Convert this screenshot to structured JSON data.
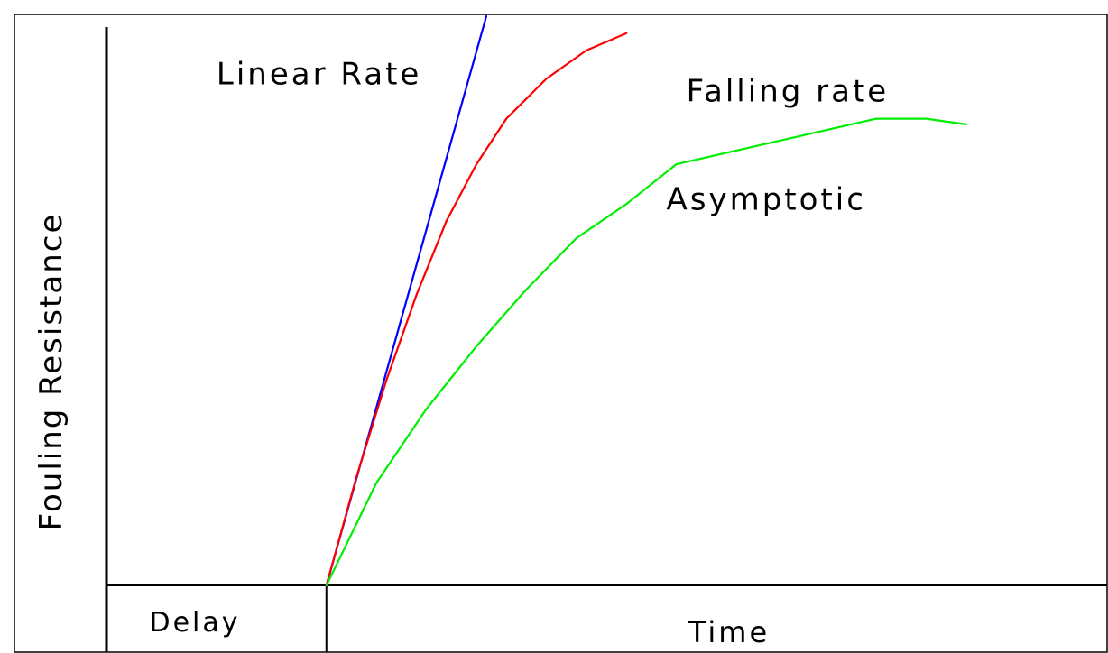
{
  "chart_data": {
    "type": "line",
    "title": "",
    "ylabel": "Fouling Resistance",
    "xlabel": "Time",
    "delay_label": "Delay",
    "xlim": [
      0,
      100
    ],
    "ylim": [
      0,
      100
    ],
    "delay_end": 22,
    "grid": false,
    "series": [
      {
        "name": "Linear Rate",
        "color": "#0000ff",
        "x": [
          22,
          38
        ],
        "y": [
          0,
          100
        ]
      },
      {
        "name": "Falling rate",
        "color": "#ff0000",
        "x": [
          22,
          25,
          28,
          31,
          34,
          37,
          40,
          44,
          48,
          52
        ],
        "y": [
          0,
          19,
          36,
          51,
          64,
          74,
          82,
          89,
          94,
          97
        ]
      },
      {
        "name": "Asymptotic",
        "color": "#00ee00",
        "x": [
          22,
          27,
          32,
          37,
          42,
          47,
          52,
          57,
          62,
          67,
          72,
          77,
          82,
          86
        ],
        "y": [
          0,
          18,
          31,
          42,
          52,
          61,
          67,
          74,
          76,
          78,
          80,
          82,
          82,
          81
        ]
      }
    ],
    "annotations": [
      {
        "text": "Linear Rate",
        "x": 11,
        "y": 88
      },
      {
        "text": "Falling rate",
        "x": 58,
        "y": 85
      },
      {
        "text": "Asymptotic",
        "x": 56,
        "y": 66
      }
    ]
  }
}
